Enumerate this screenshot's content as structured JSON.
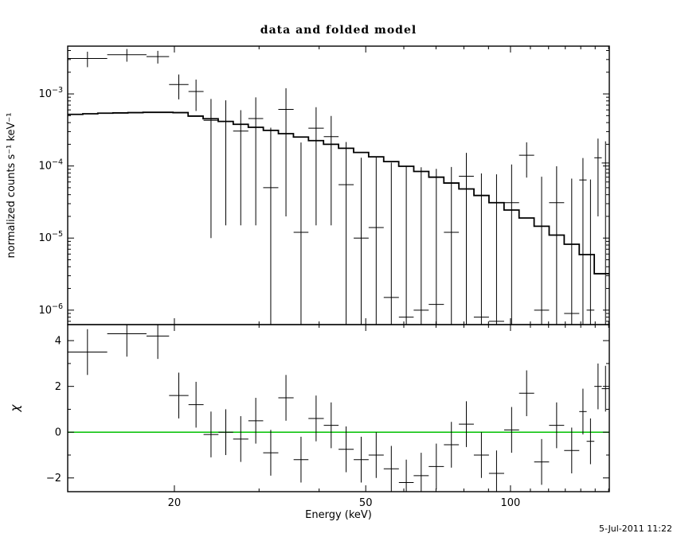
{
  "title": "data and folded model",
  "timestamp": "5-Jul-2011 11:22",
  "colors": {
    "foreground": "#000000",
    "model_line": "#000000",
    "data_points": "#000000",
    "zero_line": "#00c000",
    "background": "#ffffff"
  },
  "chart_data": {
    "type": "scatter",
    "title": "data and folded model",
    "xlabel": "Energy (keV)",
    "x_axis": {
      "scale": "log",
      "lim": [
        12.0,
        160.5
      ],
      "major_ticks": [
        20,
        50,
        100
      ],
      "minor_ticks": [
        30,
        40,
        60,
        70,
        80,
        90,
        110,
        120,
        130,
        140,
        150,
        160
      ]
    },
    "top_panel": {
      "ylabel": "normalized counts s⁻¹ keV⁻¹",
      "scale": "log",
      "lim": [
        6.3e-07,
        0.0046
      ],
      "y_major_exponents": [
        -3,
        -4,
        -5,
        -6
      ],
      "data": {
        "e_lo": [
          12.0,
          14.5,
          17.5,
          19.5,
          21.4,
          23.0,
          24.7,
          26.5,
          28.5,
          30.6,
          32.9,
          35.4,
          38.0,
          40.9,
          43.9,
          47.2,
          50.7,
          54.5,
          58.6,
          62.9,
          67.6,
          72.7,
          78.1,
          83.9,
          90.2,
          97.0,
          104.2,
          112.0,
          120.3,
          129.3,
          139.0,
          144.0,
          149.4,
          154.8
        ],
        "e_hi": [
          14.5,
          17.5,
          19.5,
          21.4,
          23.0,
          24.7,
          26.5,
          28.5,
          30.6,
          32.9,
          35.4,
          38.0,
          40.9,
          43.9,
          47.2,
          50.7,
          54.5,
          58.6,
          62.9,
          67.6,
          72.7,
          78.1,
          83.9,
          90.2,
          97.0,
          104.2,
          112.0,
          120.3,
          129.3,
          139.0,
          144.0,
          149.4,
          154.8,
          160.5
        ],
        "counts": [
          0.0031,
          0.0035,
          0.0033,
          0.00135,
          0.00108,
          0.00043,
          0.000415,
          0.000305,
          0.000455,
          5e-05,
          0.00061,
          1.2e-05,
          0.000335,
          0.000255,
          5.5e-05,
          1e-05,
          1.4e-05,
          1.5e-06,
          8e-07,
          1e-06,
          1.2e-06,
          1.2e-05,
          7.2e-05,
          8e-07,
          7e-07,
          3.1e-05,
          0.000141,
          1e-06,
          3.1e-05,
          9e-07,
          6.4e-05,
          1e-06,
          0.00013,
          0.00011
        ],
        "err": [
          0.00075,
          0.0007,
          0.00066,
          0.00051,
          0.0005,
          0.00042,
          0.0004,
          0.00029,
          0.00044,
          0.00029,
          0.00059,
          0.0002,
          0.00032,
          0.00024,
          0.00016,
          0.00012,
          0.00012,
          0.00011,
          0.0001,
          9.5e-05,
          9e-05,
          8.5e-05,
          8e-05,
          7.8e-05,
          7.6e-05,
          7.4e-05,
          7.2e-05,
          7e-05,
          6.8e-05,
          6.6e-05,
          6.5e-05,
          6.4e-05,
          0.00011,
          0.00011
        ]
      },
      "model": {
        "edges": [
          12.0,
          12.9,
          13.86,
          14.9,
          16.01,
          17.21,
          18.49,
          19.87,
          21.36,
          22.95,
          24.67,
          26.51,
          28.49,
          30.62,
          32.91,
          35.37,
          38.01,
          40.85,
          43.9,
          47.18,
          50.7,
          54.49,
          58.56,
          62.93,
          67.63,
          72.68,
          78.11,
          83.94,
          90.21,
          96.95,
          104.19,
          111.97,
          120.33,
          129.32,
          138.98,
          149.36,
          160.5
        ],
        "values": [
          0.00052,
          0.00053,
          0.00054,
          0.000545,
          0.00055,
          0.000555,
          0.000555,
          0.00055,
          0.000492,
          0.000452,
          0.000415,
          0.000379,
          0.000344,
          0.000312,
          0.000281,
          0.000252,
          0.000225,
          0.0002,
          0.000176,
          0.000154,
          0.000134,
          0.000115,
          9.9e-05,
          8.4e-05,
          7e-05,
          5.8e-05,
          4.8e-05,
          3.9e-05,
          3.1e-05,
          2.45e-05,
          1.9e-05,
          1.46e-05,
          1.1e-05,
          8.2e-06,
          5.9e-06,
          3.2e-06
        ]
      }
    },
    "bottom_panel": {
      "ylabel": "χ",
      "scale": "linear",
      "lim": [
        -2.6,
        4.7
      ],
      "y_major_ticks": [
        -2,
        0,
        2,
        4
      ],
      "y_minor_ticks": [
        -1,
        1,
        3
      ],
      "zero_line": 0,
      "chi": [
        3.5,
        4.3,
        4.2,
        1.6,
        1.2,
        -0.1,
        0.0,
        -0.3,
        0.5,
        -0.9,
        1.5,
        -1.2,
        0.6,
        0.3,
        -0.75,
        -1.2,
        -1.0,
        -1.6,
        -2.2,
        -1.9,
        -1.5,
        -0.55,
        0.35,
        -1.0,
        -1.8,
        0.1,
        1.7,
        -1.3,
        0.3,
        -0.8,
        0.9,
        -0.4,
        2.0,
        1.9
      ],
      "chi_err": 1
    }
  }
}
